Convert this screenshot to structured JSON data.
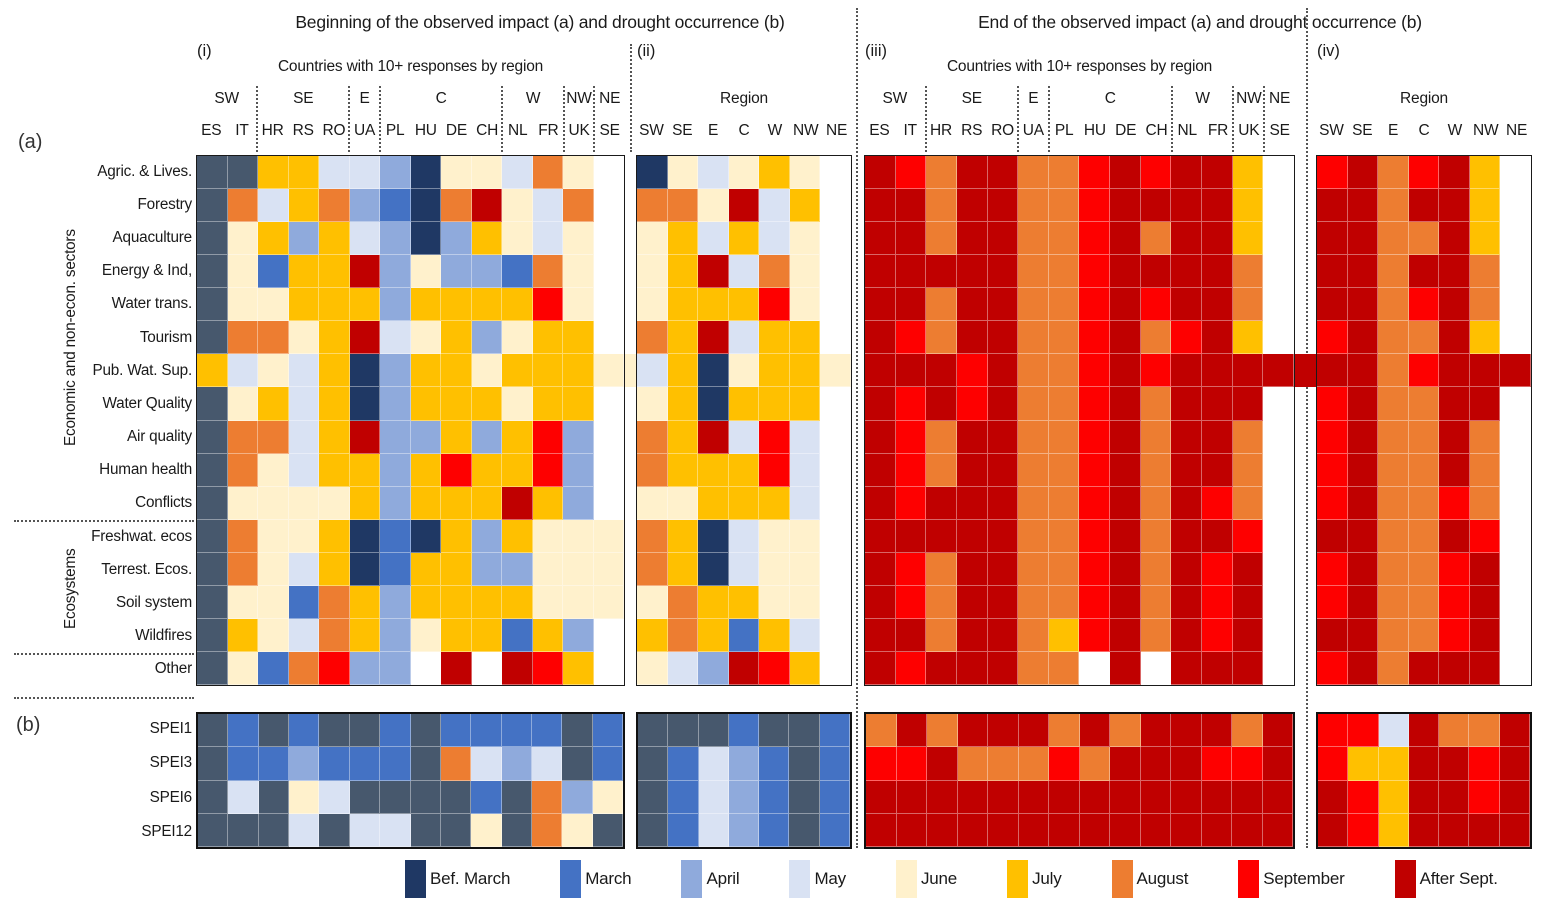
{
  "titles": {
    "left": "Beginning of the observed impact (a) and drought occurrence (b)",
    "right": "End of the observed impact (a) and drought occurrence (b)"
  },
  "section_labels": {
    "a": "(a)",
    "b": "(b)",
    "econ": "Economic and non-econ. sectors",
    "eco": "Ecosystems"
  },
  "chart_data": {
    "type": "heatmap",
    "note": "Cell codes are month categories mapped through palette",
    "palette": {
      "BM": "#1f3864",
      "BM2": "#47586d",
      "M": "#4472c4",
      "A": "#8faadc",
      "My": "#d9e2f3",
      "Jn": "#fff1cc",
      "Jl": "#ffc000",
      "Au": "#ed7d31",
      "S": "#fe0000",
      "AS": "#c00000",
      "W": "#ffffff"
    },
    "legend": [
      {
        "label": "Bef. March",
        "code": "BM"
      },
      {
        "label": "March",
        "code": "M"
      },
      {
        "label": "April",
        "code": "A"
      },
      {
        "label": "May",
        "code": "My"
      },
      {
        "label": "June",
        "code": "Jn"
      },
      {
        "label": "July",
        "code": "Jl"
      },
      {
        "label": "August",
        "code": "Au"
      },
      {
        "label": "September",
        "code": "S"
      },
      {
        "label": "After Sept.",
        "code": "AS"
      }
    ],
    "rows_a": [
      "Agric. & Lives.",
      "Forestry",
      "Aquaculture",
      "Energy & Ind,",
      "Water trans.",
      "Tourism",
      "Pub. Wat. Sup.",
      "Water Quality",
      "Air quality",
      "Human health",
      "Conflicts",
      "Freshwat. ecos",
      "Terrest. Ecos.",
      "Soil system",
      "Wildfires",
      "Other"
    ],
    "rows_b": [
      "SPEI1",
      "SPEI3",
      "SPEI6",
      "SPEI12"
    ],
    "panels": [
      {
        "id": "i",
        "label": "(i)",
        "subtitle": "Countries with 10+ responses by region",
        "groups": [
          {
            "label": "SW",
            "span": 2
          },
          {
            "label": "SE",
            "span": 3
          },
          {
            "label": "E",
            "span": 1
          },
          {
            "label": "C",
            "span": 4
          },
          {
            "label": "W",
            "span": 2
          },
          {
            "label": "NW",
            "span": 1
          },
          {
            "label": "NE",
            "span": 1
          }
        ],
        "columns": [
          "ES",
          "IT",
          "HR",
          "RS",
          "RO",
          "UA",
          "PL",
          "HU",
          "DE",
          "CH",
          "NL",
          "FR",
          "UK",
          "SE"
        ],
        "grid_a": [
          "BM2 BM2 Jl Jl My My A BM Jn Jn My Au Jn W",
          "BM2 Au My Jl Au A M BM Au AS Jn My Au W",
          "BM2 Jn Jl A Jl My A BM A Jl Jn My Jn W",
          "BM2 Jn M Jl Jl AS A Jn A A M Au Jn W",
          "BM2 Jn Jn Jl Jl Jl A Jl Jl Jl Jl S Jn W",
          "BM2 Au Au Jn Jl AS My Jn Jl A Jn Jl Jl W",
          "Jl My Jn My Jl BM A Jl Jl Jn Jl Jl Jl Jn",
          "BM2 Jn Jl My Jl BM A Jl Jl Jl Jn Jl Jl W",
          "BM2 Au Au My Jl AS A A Jl A Jl S A W",
          "BM2 Au Jn My Jl Jl A Jl S Jl Jl S A W",
          "BM2 Jn Jn Jn Jn Jl A Jl Jl Jl AS Jl A W",
          "BM2 Au Jn Jn Jl BM M BM Jl A Jl Jn Jn Jn",
          "BM2 Au Jn My Jl BM M Jl Jl A A Jn Jn Jn",
          "BM2 Jn Jn M Au Jl A Jl Jl Jl Jl Jn Jn Jn",
          "BM2 Jl Jn My Au Jl A Jn Jl Jl M Jl A W",
          "BM2 Jn M Au S A A W AS W AS S Jl W"
        ],
        "grid_b": [
          "BM2 M BM2 M BM2 BM2 M BM2 M M M M BM2 M",
          "BM2 M M A M M M BM2 Au My A My BM2 M",
          "BM2 My BM2 Jn My BM2 BM2 BM2 BM2 M BM2 Au A Jn",
          "BM2 BM2 BM2 My BM2 My My BM2 BM2 Jn BM2 Au Jn BM2"
        ],
        "gap_strip": {
          "row": 7,
          "code": "Jn"
        }
      },
      {
        "id": "ii",
        "label": "(ii)",
        "subtitle": "Region",
        "columns": [
          "SW",
          "SE",
          "E",
          "C",
          "W",
          "NW",
          "NE"
        ],
        "grid_a": [
          "BM Jn My Jn Jl Jn W",
          "Au Au Jn AS My Jl W",
          "Jn Jl My Jl My Jn W",
          "Jn Jl AS My Au Jn W",
          "Jn Jl Jl Jl S Jn W",
          "Au Jl AS My Jl Jl W",
          "My Jl BM Jn Jl Jl Jn",
          "Jn Jl BM Jl Jl Jl W",
          "Au Jl AS My S My W",
          "Au Jl Jl Jl S My W",
          "Jn Jn Jl Jl Jl My W",
          "Au Jl BM My Jn Jn W",
          "Au Jl BM My Jn Jn W",
          "Jn Au Jl Jl Jn Jn W",
          "Jl Au Jl M Jl My W",
          "Jn My A AS S Jl W"
        ],
        "grid_b": [
          "BM2 BM2 BM2 M BM2 BM2 M",
          "BM2 M My A M BM2 M",
          "BM2 M My A M BM2 M",
          "BM2 M My A M BM2 M"
        ]
      },
      {
        "id": "iii",
        "label": "(iii)",
        "subtitle": "Countries with 10+ responses by region",
        "groups": [
          {
            "label": "SW",
            "span": 2
          },
          {
            "label": "SE",
            "span": 3
          },
          {
            "label": "E",
            "span": 1
          },
          {
            "label": "C",
            "span": 4
          },
          {
            "label": "W",
            "span": 2
          },
          {
            "label": "NW",
            "span": 1
          },
          {
            "label": "NE",
            "span": 1
          }
        ],
        "columns": [
          "ES",
          "IT",
          "HR",
          "RS",
          "RO",
          "UA",
          "PL",
          "HU",
          "DE",
          "CH",
          "NL",
          "FR",
          "UK",
          "SE"
        ],
        "grid_a": [
          "AS S Au AS AS Au Au S AS S AS AS Jl W",
          "AS AS Au AS AS Au Au S AS AS AS AS Jl W",
          "AS AS Au AS AS Au Au S AS Au AS AS Jl W",
          "AS AS AS AS AS Au Au S AS AS AS AS Au W",
          "AS AS Au AS AS Au Au S AS S AS AS Au W",
          "AS S Au AS AS Au Au S AS Au S AS Jl W",
          "AS AS AS S AS Au Au S AS S AS AS AS AS",
          "AS S AS S AS Au Au S AS Au AS AS AS W",
          "AS S Au AS AS Au Au S AS Au AS AS Au W",
          "AS S Au AS AS Au Au S AS Au AS AS Au W",
          "AS S AS AS AS Au Au S AS Au AS S Au W",
          "AS AS AS AS AS Au Au S AS Au AS AS S W",
          "AS S Au AS AS Au Au S AS Au AS S AS W",
          "AS S Au AS AS Au Au S AS Au AS S AS W",
          "AS AS Au AS AS Au Jl S AS Au AS S AS W",
          "AS S AS AS AS Au Au W AS W AS AS AS W"
        ],
        "grid_b": [
          "Au AS Au AS AS AS Au AS Au AS AS AS Au AS",
          "S S AS Au Au Au S Au AS AS AS S S AS",
          "AS AS AS AS AS AS AS AS AS AS AS AS AS AS",
          "AS AS AS AS AS AS AS AS AS AS AS AS AS AS"
        ],
        "gap_strip": {
          "row": 7,
          "code": "AS"
        }
      },
      {
        "id": "iv",
        "label": "(iv)",
        "subtitle": "Region",
        "columns": [
          "SW",
          "SE",
          "E",
          "C",
          "W",
          "NW",
          "NE"
        ],
        "grid_a": [
          "S AS Au S AS Jl W",
          "AS AS Au AS AS Jl W",
          "AS AS Au Au AS Jl W",
          "AS AS Au AS AS Au W",
          "AS AS Au S AS Au W",
          "S AS Au Au AS Jl W",
          "AS AS Au S AS AS AS",
          "S AS Au Au AS AS W",
          "S AS Au Au AS Au W",
          "S AS Au Au AS Au W",
          "S AS Au Au S Au W",
          "AS AS Au Au AS S W",
          "S AS Au Au S AS W",
          "S AS Au Au S AS W",
          "AS AS Au Au S AS W",
          "S AS Au AS AS AS W"
        ],
        "grid_b": [
          "S S My AS Au Au AS",
          "S Jl Jl AS AS S AS",
          "AS S Jl AS AS S AS",
          "AS S Jl AS AS AS AS"
        ]
      }
    ]
  }
}
